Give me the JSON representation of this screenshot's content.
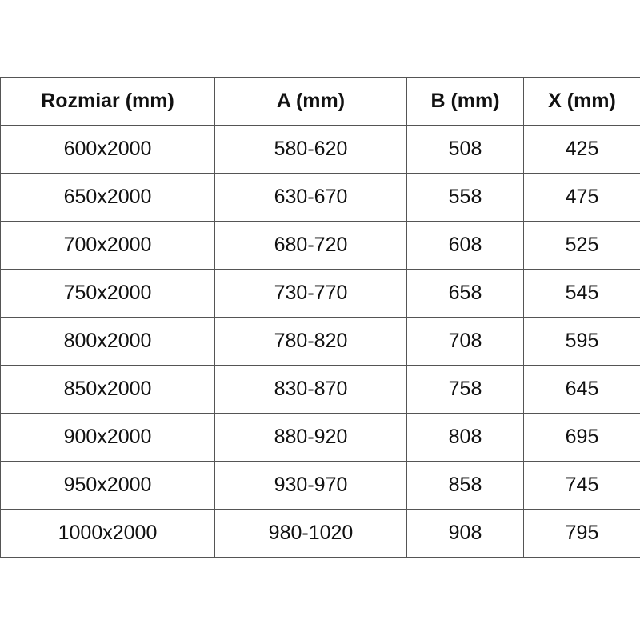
{
  "table": {
    "headers": [
      "Rozmiar (mm)",
      "A (mm)",
      "B (mm)",
      "X (mm)"
    ],
    "rows": [
      [
        "600x2000",
        "580-620",
        "508",
        "425"
      ],
      [
        "650x2000",
        "630-670",
        "558",
        "475"
      ],
      [
        "700x2000",
        "680-720",
        "608",
        "525"
      ],
      [
        "750x2000",
        "730-770",
        "658",
        "545"
      ],
      [
        "800x2000",
        "780-820",
        "708",
        "595"
      ],
      [
        "850x2000",
        "830-870",
        "758",
        "645"
      ],
      [
        "900x2000",
        "880-920",
        "808",
        "695"
      ],
      [
        "950x2000",
        "930-970",
        "858",
        "745"
      ],
      [
        "1000x2000",
        "980-1020",
        "908",
        "795"
      ]
    ]
  }
}
